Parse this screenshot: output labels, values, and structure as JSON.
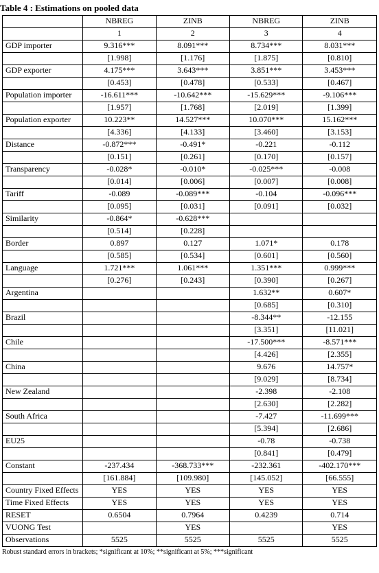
{
  "title": "Table 4 : Estimations on pooled data",
  "headers": {
    "model1": "NBREG",
    "model2": "ZINB",
    "model3": "NBREG",
    "model4": "ZINB",
    "num1": "1",
    "num2": "2",
    "num3": "3",
    "num4": "4"
  },
  "rows": [
    {
      "label": " GDP importer",
      "v": [
        "9.316***",
        "8.091***",
        "8.734***",
        "8.031***"
      ]
    },
    {
      "label": "",
      "v": [
        "[1.998]",
        "[1.176]",
        "[1.875]",
        "[0.810]"
      ]
    },
    {
      "label": " GDP exporter",
      "v": [
        "4.175***",
        "3.643***",
        "3.851***",
        "3.453***"
      ]
    },
    {
      "label": "",
      "v": [
        "[0.453]",
        "[0.478]",
        "[0.533]",
        "[0.467]"
      ]
    },
    {
      "label": " Population importer",
      "v": [
        "-16.611***",
        "-10.642***",
        "-15.629***",
        "-9.106***"
      ]
    },
    {
      "label": "",
      "v": [
        "[1.957]",
        "[1.768]",
        "[2.019]",
        "[1.399]"
      ]
    },
    {
      "label": " Population exporter",
      "v": [
        "10.223**",
        "14.527***",
        "10.070***",
        "15.162***"
      ]
    },
    {
      "label": "",
      "v": [
        "[4.336]",
        "[4.133]",
        "[3.460]",
        "[3.153]"
      ]
    },
    {
      "label": " Distance",
      "v": [
        "-0.872***",
        "-0.491*",
        "-0.221",
        "-0.112"
      ]
    },
    {
      "label": "",
      "v": [
        "[0.151]",
        "[0.261]",
        "[0.170]",
        "[0.157]"
      ]
    },
    {
      "label": " Transparency",
      "v": [
        "-0.028*",
        "-0.010*",
        "-0.025***",
        "-0.008"
      ]
    },
    {
      "label": "",
      "v": [
        "[0.014]",
        "[0.006]",
        "[0.007]",
        "[0.008]"
      ]
    },
    {
      "label": " Tariff",
      "v": [
        "-0.089",
        "-0.089***",
        "-0.104",
        "-0.096***"
      ]
    },
    {
      "label": "",
      "v": [
        "[0.095]",
        "[0.031]",
        "[0.091]",
        "[0.032]"
      ]
    },
    {
      "label": " Similarity",
      "v": [
        "-0.864*",
        "-0.628***",
        "",
        ""
      ]
    },
    {
      "label": "",
      "v": [
        "[0.514]",
        "[0.228]",
        "",
        ""
      ]
    },
    {
      "label": " Border",
      "v": [
        "0.897",
        "0.127",
        "1.071*",
        "0.178"
      ]
    },
    {
      "label": "",
      "v": [
        "[0.585]",
        "[0.534]",
        "[0.601]",
        "[0.560]"
      ]
    },
    {
      "label": " Language",
      "v": [
        "1.721***",
        "1.061***",
        "1.351***",
        "0.999***"
      ]
    },
    {
      "label": "",
      "v": [
        "[0.276]",
        "[0.243]",
        "[0.390]",
        "[0.267]"
      ]
    },
    {
      "label": " Argentina",
      "v": [
        "",
        "",
        "1.632**",
        "0.607*"
      ]
    },
    {
      "label": "",
      "v": [
        "",
        "",
        "[0.685]",
        "[0.310]"
      ]
    },
    {
      "label": " Brazil",
      "v": [
        "",
        "",
        "-8.344**",
        "-12.155"
      ]
    },
    {
      "label": "",
      "v": [
        "",
        "",
        "[3.351]",
        "[11.021]"
      ]
    },
    {
      "label": " Chile",
      "v": [
        "",
        "",
        "-17.500***",
        "-8.571***"
      ]
    },
    {
      "label": "",
      "v": [
        "",
        "",
        "[4.426]",
        "[2.355]"
      ]
    },
    {
      "label": " China",
      "v": [
        "",
        "",
        "9.676",
        "14.757*"
      ]
    },
    {
      "label": "",
      "v": [
        "",
        "",
        "[9.029]",
        "[8.734]"
      ]
    },
    {
      "label": " New Zealand",
      "v": [
        "",
        "",
        "-2.398",
        "-2.108"
      ]
    },
    {
      "label": "",
      "v": [
        "",
        "",
        "[2.630]",
        "[2.282]"
      ]
    },
    {
      "label": " South Africa",
      "v": [
        "",
        "",
        "-7.427",
        "-11.699***"
      ]
    },
    {
      "label": "",
      "v": [
        "",
        "",
        "[5.394]",
        "[2.686]"
      ]
    },
    {
      "label": " EU25",
      "v": [
        "",
        "",
        "-0.78",
        "-0.738"
      ]
    },
    {
      "label": "",
      "v": [
        "",
        "",
        "[0.841]",
        "[0.479]"
      ]
    },
    {
      "label": " Constant",
      "v": [
        "-237.434",
        "-368.733***",
        "-232.361",
        "-402.170***"
      ]
    },
    {
      "label": "",
      "v": [
        "[161.884]",
        "[109.980]",
        "[145.052]",
        "[66.555]"
      ]
    },
    {
      "label": " Country Fixed Effects",
      "v": [
        "YES",
        "YES",
        "YES",
        "YES"
      ]
    },
    {
      "label": " Time Fixed Effects",
      "v": [
        "YES",
        "YES",
        "YES",
        "YES"
      ]
    },
    {
      "label": " RESET",
      "v": [
        "0.6504",
        "0.7964",
        "0.4239",
        "0.714"
      ]
    },
    {
      "label": " VUONG Test",
      "v": [
        "",
        "YES",
        "",
        "YES"
      ]
    },
    {
      "label": " Observations",
      "v": [
        "5525",
        "5525",
        "5525",
        "5525"
      ]
    }
  ],
  "footnote": "Robust standard errors in brackets;  *significant at 10%; **significant at 5%;  ***significant"
}
